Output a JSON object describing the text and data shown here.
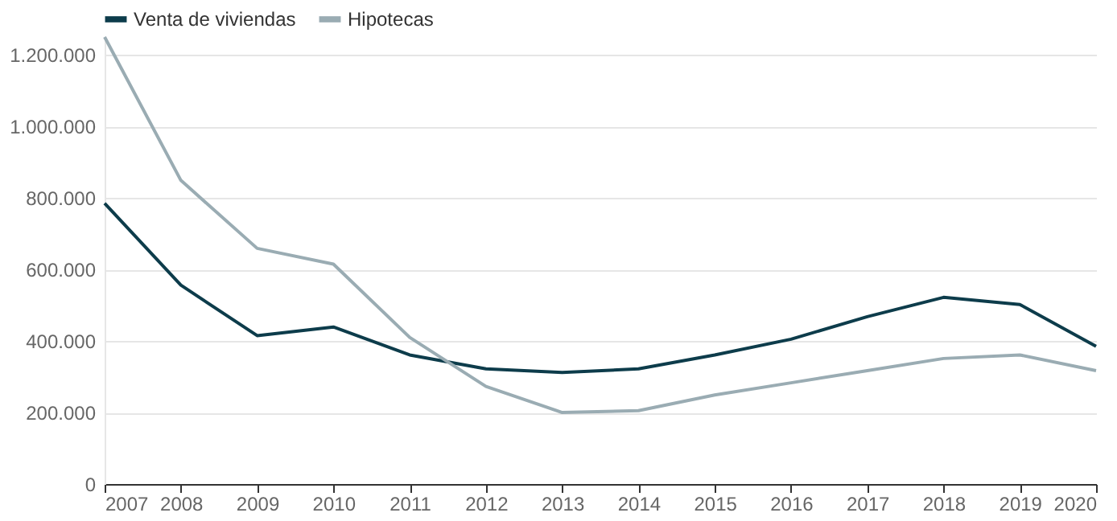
{
  "chart_data": {
    "type": "line",
    "categories": [
      "2007",
      "2008",
      "2009",
      "2010",
      "2011",
      "2012",
      "2013",
      "2014",
      "2015",
      "2016",
      "2017",
      "2018",
      "2019",
      "2020"
    ],
    "series": [
      {
        "name": "Venta de viviendas",
        "color": "#0d3c4b",
        "values": [
          785000,
          556000,
          415000,
          439000,
          361000,
          322000,
          312000,
          322000,
          361000,
          405000,
          468000,
          522000,
          502000,
          385000
        ]
      },
      {
        "name": "Hipotecas",
        "color": "#9aacb3",
        "values": [
          1250000,
          849000,
          659000,
          615000,
          410000,
          273000,
          200000,
          205000,
          249000,
          283000,
          317000,
          351000,
          361000,
          317000
        ]
      }
    ],
    "ylim": [
      0,
      1250000
    ],
    "yticks": [
      {
        "value": 0,
        "label": "0"
      },
      {
        "value": 200000,
        "label": "200.000"
      },
      {
        "value": 400000,
        "label": "400.000"
      },
      {
        "value": 600000,
        "label": "600.000"
      },
      {
        "value": 800000,
        "label": "800.000"
      },
      {
        "value": 1000000,
        "label": "1.000.000"
      },
      {
        "value": 1200000,
        "label": "1.200.000"
      }
    ],
    "grid": "y",
    "legend": "top left",
    "marker": "none",
    "line_style": "solid"
  }
}
